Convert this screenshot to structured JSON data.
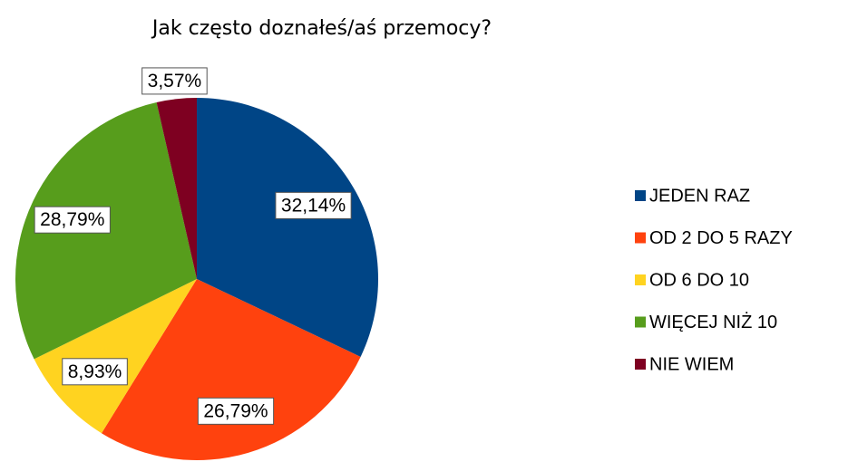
{
  "chart_data": {
    "type": "pie",
    "title": "Jak często doznałeś/aś przemocy?",
    "categories": [
      "JEDEN RAZ",
      "OD 2 DO 5 RAZY",
      "OD 6 DO 10",
      "WIĘCEJ NIŻ 10",
      "NIE WIEM"
    ],
    "values": [
      32.14,
      26.79,
      8.93,
      28.79,
      3.57
    ],
    "value_labels": [
      "32,14%",
      "26,79%",
      "8,93%",
      "28,79%",
      "3,57%"
    ],
    "colors": [
      "#004586",
      "#ff420e",
      "#ffd320",
      "#579d1c",
      "#7e0021"
    ],
    "legend": "right"
  }
}
